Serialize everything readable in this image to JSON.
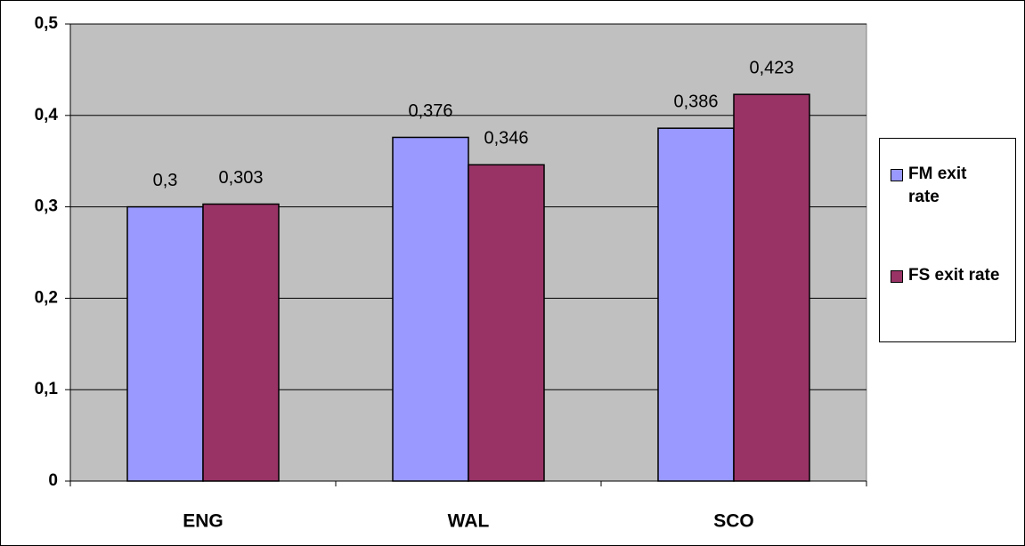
{
  "chart_data": {
    "type": "bar",
    "categories": [
      "ENG",
      "WAL",
      "SCO"
    ],
    "series": [
      {
        "name": "FM exit rate",
        "color": "#9999ff",
        "values": [
          0.3,
          0.376,
          0.386
        ],
        "value_labels": [
          "0,3",
          "0,376",
          "0,386"
        ]
      },
      {
        "name": "FS exit rate",
        "color": "#993366",
        "values": [
          0.303,
          0.346,
          0.423
        ],
        "value_labels": [
          "0,303",
          "0,346",
          "0,423"
        ]
      }
    ],
    "ylim": [
      0,
      0.5
    ],
    "yticks": [
      0,
      {
        "value": 0.1,
        "label": "0,1"
      },
      {
        "value": 0.2,
        "label": "0,2"
      },
      {
        "value": 0.3,
        "label": "0,3"
      },
      {
        "value": 0.4,
        "label": "0,4"
      },
      {
        "value": 0.5,
        "label": "0,5"
      }
    ],
    "grid": true,
    "legend": "right"
  }
}
